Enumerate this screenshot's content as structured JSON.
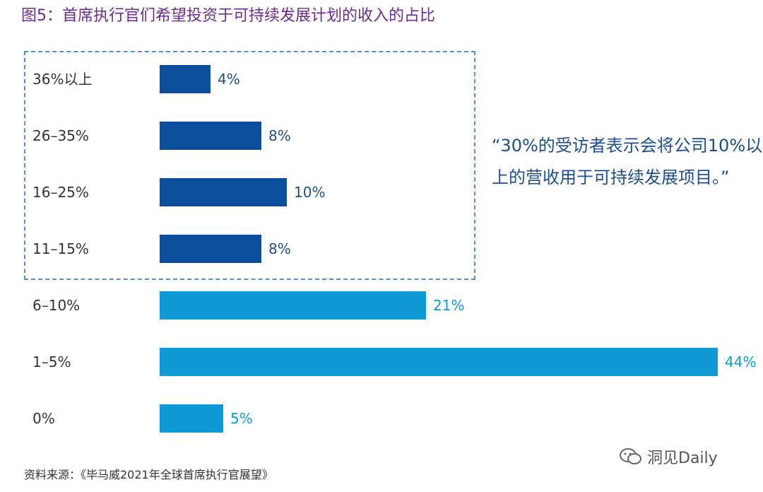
{
  "title": "图5：首席执行官们希望投资于可持续发展计划的收入的占比",
  "chart_data": {
    "type": "bar",
    "orientation": "horizontal",
    "title": "图5：首席执行官们希望投资于可持续发展计划的收入的占比",
    "categories": [
      "36%以上",
      "26–35%",
      "16–25%",
      "11–15%",
      "6–10%",
      "1–5%",
      "0%"
    ],
    "values": [
      4,
      8,
      10,
      8,
      21,
      44,
      5
    ],
    "value_labels": [
      "4%",
      "8%",
      "10%",
      "8%",
      "21%",
      "44%",
      "5%"
    ],
    "highlighted_categories": [
      "36%以上",
      "26–35%",
      "16–25%",
      "11–15%"
    ],
    "xlim": [
      0,
      44
    ],
    "colors": {
      "highlighted": "#0b4f9c",
      "normal": "#0f9ad6"
    },
    "xlabel": "",
    "ylabel": ""
  },
  "quote": "“30%的受访者表示会将公司10%以上的营收用于可持续发展项目。”",
  "source": "资料来源：《毕马威2021年全球首席执行官展望》",
  "watermark": "洞见Daily",
  "colors": {
    "title": "#6b2c8e",
    "quote": "#1f4e8c",
    "dashed_border": "#5b8fc7"
  }
}
